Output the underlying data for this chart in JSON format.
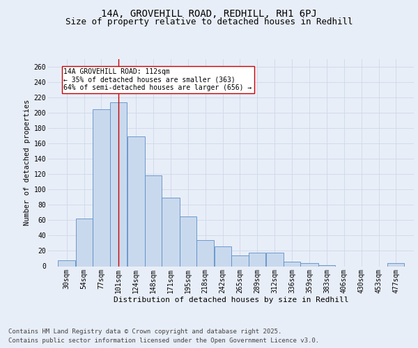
{
  "title1": "14A, GROVEHILL ROAD, REDHILL, RH1 6PJ",
  "title2": "Size of property relative to detached houses in Redhill",
  "xlabel": "Distribution of detached houses by size in Redhill",
  "ylabel": "Number of detached properties",
  "bins": [
    30,
    54,
    77,
    101,
    124,
    148,
    171,
    195,
    218,
    242,
    265,
    289,
    312,
    336,
    359,
    383,
    406,
    430,
    453,
    477,
    500
  ],
  "bar_heights": [
    8,
    62,
    205,
    214,
    169,
    118,
    89,
    65,
    34,
    26,
    14,
    18,
    18,
    6,
    4,
    1,
    0,
    0,
    0,
    4
  ],
  "bar_color": "#c9d9ed",
  "bar_edge_color": "#5b8dc8",
  "grid_color": "#d0d8e8",
  "bg_color": "#e8eef8",
  "vline_x": 112,
  "vline_color": "#cc0000",
  "annotation_text": "14A GROVEHILL ROAD: 112sqm\n← 35% of detached houses are smaller (363)\n64% of semi-detached houses are larger (656) →",
  "annotation_box_color": "white",
  "annotation_box_edge": "#cc0000",
  "footer1": "Contains HM Land Registry data © Crown copyright and database right 2025.",
  "footer2": "Contains public sector information licensed under the Open Government Licence v3.0.",
  "ylim": [
    0,
    270
  ],
  "yticks": [
    0,
    20,
    40,
    60,
    80,
    100,
    120,
    140,
    160,
    180,
    200,
    220,
    240,
    260
  ],
  "title1_fontsize": 10,
  "title2_fontsize": 9,
  "axis_fontsize": 7.5,
  "tick_fontsize": 7,
  "footer_fontsize": 6.5,
  "annotation_fontsize": 7
}
